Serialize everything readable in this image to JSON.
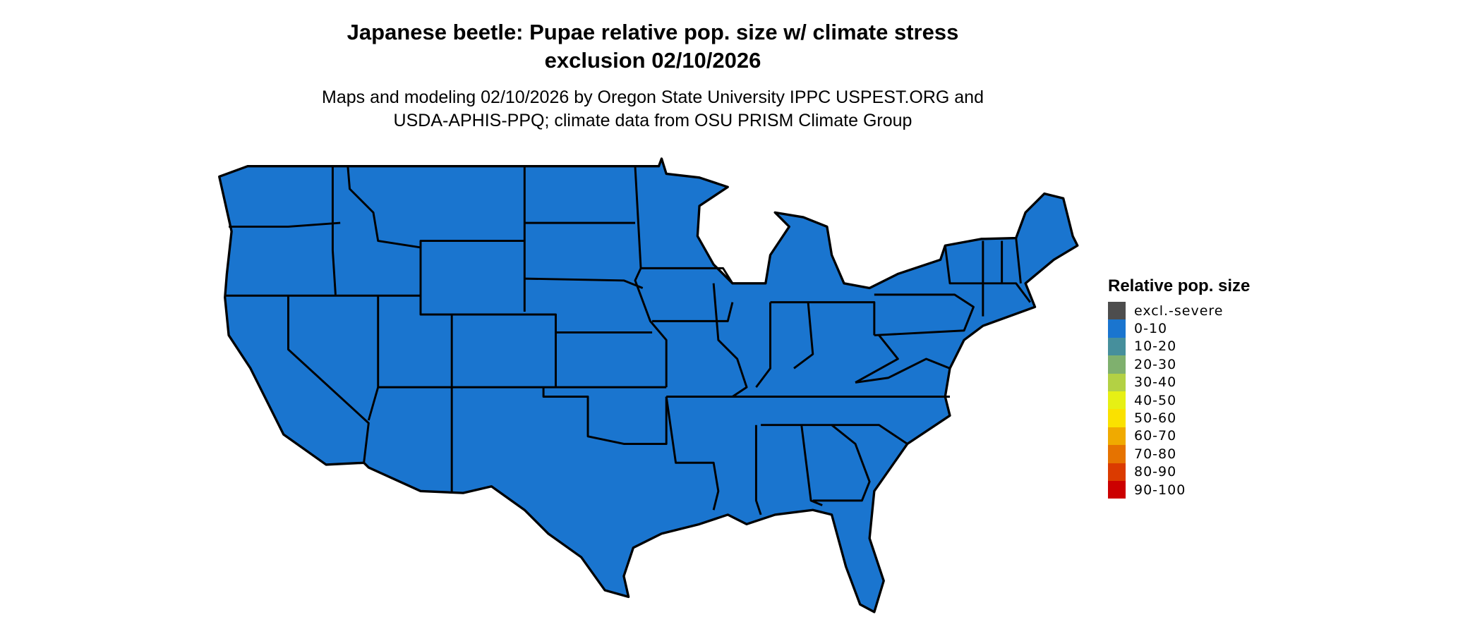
{
  "title": {
    "line1": "Japanese beetle: Pupae relative pop. size w/ climate stress",
    "line2": "exclusion 02/10/2026"
  },
  "subtitle": {
    "line1": "Maps and modeling 02/10/2026 by Oregon State University IPPC USPEST.ORG and",
    "line2": "USDA-APHIS-PPQ; climate data from OSU PRISM Climate Group"
  },
  "map": {
    "region": "Contiguous United States",
    "fill_color": "#1a75cf",
    "border_color": "#000000",
    "value_category_shown": "0-10"
  },
  "legend": {
    "title": "Relative pop. size",
    "items": [
      {
        "label": "excl.-severe",
        "color": "#4d4d4d"
      },
      {
        "label": "0-10",
        "color": "#1a75cf"
      },
      {
        "label": "10-20",
        "color": "#468f9c"
      },
      {
        "label": "20-30",
        "color": "#7fb06e"
      },
      {
        "label": "30-40",
        "color": "#b3d144"
      },
      {
        "label": "40-50",
        "color": "#e6f014"
      },
      {
        "label": "50-60",
        "color": "#fae100"
      },
      {
        "label": "60-70",
        "color": "#f0aa00"
      },
      {
        "label": "70-80",
        "color": "#e67300"
      },
      {
        "label": "80-90",
        "color": "#db3b00"
      },
      {
        "label": "90-100",
        "color": "#cc0000"
      }
    ]
  }
}
